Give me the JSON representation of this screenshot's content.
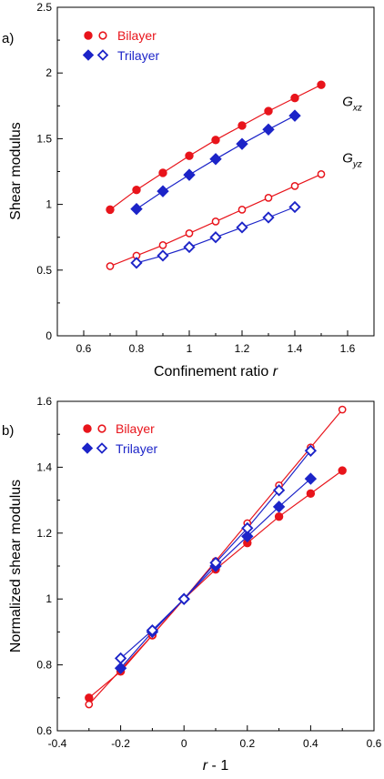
{
  "chart_data": [
    {
      "type": "line",
      "panel_label": "a)",
      "xlabel": "Confinement ratio ",
      "xlabel_var": "r",
      "ylabel": "Shear modulus",
      "xlim": [
        0.5,
        1.7
      ],
      "ylim": [
        0,
        2.5
      ],
      "xticks": [
        0.6,
        0.8,
        1,
        1.2,
        1.4,
        1.6
      ],
      "xtick_labels": [
        "0.6",
        "0.8",
        "1",
        "1.2",
        "1.4",
        "1.6"
      ],
      "yticks": [
        0,
        0.5,
        1,
        1.5,
        2,
        2.5
      ],
      "ytick_labels": [
        "0",
        "0.5",
        "1",
        "1.5",
        "2",
        "2.5"
      ],
      "grid": false,
      "legend": {
        "placement": "top-left",
        "entries": [
          {
            "label": "Bilayer",
            "color": "#e8141b",
            "marker": "circle"
          },
          {
            "label": "Trilayer",
            "color": "#1c24c8",
            "marker": "diamond"
          }
        ]
      },
      "annotations": [
        {
          "main": "G",
          "sub": "xz",
          "x": 1.58,
          "y": 1.75
        },
        {
          "main": "G",
          "sub": "yz",
          "x": 1.58,
          "y": 1.32
        }
      ],
      "series": [
        {
          "group": "Bilayer",
          "quantity": "xz",
          "color": "#e8141b",
          "marker": "circle",
          "filled": true,
          "x": [
            0.7,
            0.8,
            0.9,
            1.0,
            1.1,
            1.2,
            1.3,
            1.4,
            1.5
          ],
          "y": [
            0.96,
            1.11,
            1.24,
            1.37,
            1.49,
            1.6,
            1.71,
            1.81,
            1.91
          ]
        },
        {
          "group": "Trilayer",
          "quantity": "xz",
          "color": "#1c24c8",
          "marker": "diamond",
          "filled": true,
          "x": [
            0.8,
            0.9,
            1.0,
            1.1,
            1.2,
            1.3,
            1.4
          ],
          "y": [
            0.965,
            1.1,
            1.225,
            1.345,
            1.46,
            1.57,
            1.675
          ]
        },
        {
          "group": "Bilayer",
          "quantity": "yz",
          "color": "#e8141b",
          "marker": "circle",
          "filled": false,
          "x": [
            0.7,
            0.8,
            0.9,
            1.0,
            1.1,
            1.2,
            1.3,
            1.4,
            1.5
          ],
          "y": [
            0.53,
            0.61,
            0.69,
            0.78,
            0.87,
            0.96,
            1.05,
            1.14,
            1.23
          ]
        },
        {
          "group": "Trilayer",
          "quantity": "yz",
          "color": "#1c24c8",
          "marker": "diamond",
          "filled": false,
          "x": [
            0.8,
            0.9,
            1.0,
            1.1,
            1.2,
            1.3,
            1.4
          ],
          "y": [
            0.555,
            0.61,
            0.675,
            0.75,
            0.825,
            0.9,
            0.98
          ]
        }
      ]
    },
    {
      "type": "line",
      "panel_label": "b)",
      "xlabel": " - 1",
      "xlabel_var": "r",
      "ylabel": "Normalized shear modulus",
      "xlim": [
        -0.4,
        0.6
      ],
      "ylim": [
        0.6,
        1.6
      ],
      "xticks": [
        -0.4,
        -0.2,
        0,
        0.2,
        0.4,
        0.6
      ],
      "xtick_labels": [
        "-0.4",
        "-0.2",
        "0",
        "0.2",
        "0.4",
        "0.6"
      ],
      "yticks": [
        0.6,
        0.8,
        1,
        1.2,
        1.4,
        1.6
      ],
      "ytick_labels": [
        "0.6",
        "0.8",
        "1",
        "1.2",
        "1.4",
        "1.6"
      ],
      "grid": false,
      "legend": {
        "placement": "top-left",
        "entries": [
          {
            "label": "Bilayer",
            "color": "#e8141b",
            "marker": "circle"
          },
          {
            "label": "Trilayer",
            "color": "#1c24c8",
            "marker": "diamond"
          }
        ]
      },
      "annotations": [],
      "series": [
        {
          "group": "Bilayer",
          "quantity": "xz",
          "color": "#e8141b",
          "marker": "circle",
          "filled": true,
          "x": [
            -0.3,
            -0.2,
            -0.1,
            0.0,
            0.1,
            0.2,
            0.3,
            0.4,
            0.5
          ],
          "y": [
            0.7,
            0.78,
            0.89,
            1.0,
            1.09,
            1.17,
            1.25,
            1.32,
            1.39
          ]
        },
        {
          "group": "Bilayer",
          "quantity": "yz",
          "color": "#e8141b",
          "marker": "circle",
          "filled": false,
          "x": [
            -0.3,
            -0.2,
            -0.1,
            0.0,
            0.1,
            0.2,
            0.3,
            0.4,
            0.5
          ],
          "y": [
            0.68,
            0.785,
            0.89,
            1.0,
            1.115,
            1.23,
            1.345,
            1.46,
            1.575
          ]
        },
        {
          "group": "Trilayer",
          "quantity": "xz",
          "color": "#1c24c8",
          "marker": "diamond",
          "filled": true,
          "x": [
            -0.2,
            -0.1,
            0.0,
            0.1,
            0.2,
            0.3,
            0.4
          ],
          "y": [
            0.79,
            0.9,
            1.0,
            1.1,
            1.19,
            1.28,
            1.365
          ]
        },
        {
          "group": "Trilayer",
          "quantity": "yz",
          "color": "#1c24c8",
          "marker": "diamond",
          "filled": false,
          "x": [
            -0.2,
            -0.1,
            0.0,
            0.1,
            0.2,
            0.3,
            0.4
          ],
          "y": [
            0.82,
            0.905,
            1.0,
            1.11,
            1.215,
            1.33,
            1.45
          ]
        }
      ]
    }
  ]
}
